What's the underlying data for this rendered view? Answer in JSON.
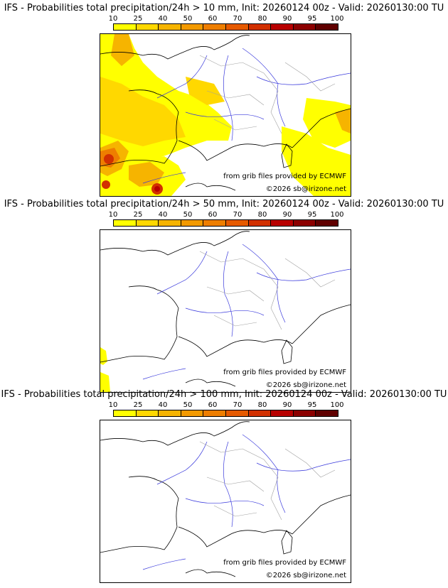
{
  "scale": {
    "ticks": [
      "10",
      "25",
      "40",
      "50",
      "60",
      "70",
      "80",
      "90",
      "95",
      "100"
    ],
    "colors": [
      "#ffff00",
      "#ffd800",
      "#f6b400",
      "#f39a00",
      "#ee7e00",
      "#e65a00",
      "#d23000",
      "#b80000",
      "#8c0000",
      "#600000"
    ]
  },
  "panels": [
    {
      "title": "IFS - Probabilities total precipitation/24h > 10 mm, Init: 20260124 00z - Valid: 20260130:00 TU"
    },
    {
      "title": "IFS - Probabilities total precipitation/24h > 50 mm, Init: 20260124 00z - Valid: 20260130:00 TU"
    },
    {
      "title": "IFS - Probabilities total precipitation/24h > 100 mm, Init: 20260124 00z - Valid: 20260130:00 TU"
    }
  ],
  "credits": {
    "source": "from grib files provided by ECMWF",
    "copyright": "©2026 sb@irizone.net"
  },
  "map_colors": {
    "coast": "#000000",
    "rivers": "#3a3adc",
    "borders": "#a0a0a0"
  }
}
